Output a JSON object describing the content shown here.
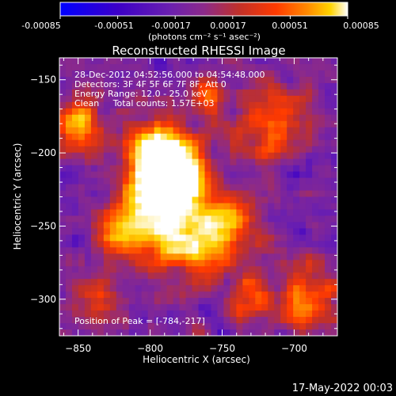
{
  "colorbar": {
    "ticks": [
      "-0.00085",
      "-0.00051",
      "-0.00017",
      "0.00017",
      "0.00051",
      "0.00085"
    ],
    "unit_label": "(photons cm⁻² s⁻¹ asec⁻²)",
    "colors": [
      "#0000ff",
      "#3c00c8",
      "#6a1fb0",
      "#8c2a8a",
      "#c0302a",
      "#ff3a00",
      "#ff8a00",
      "#ffd400",
      "#ffffff"
    ]
  },
  "chart_data": {
    "type": "heatmap",
    "title": "Reconstructed RHESSI Image",
    "xlabel": "Heliocentric X (arcsec)",
    "ylabel": "Heliocentric Y (arcsec)",
    "xlim": [
      -863,
      -670
    ],
    "ylim": [
      -325,
      -135
    ],
    "xticks": [
      -850,
      -800,
      -750,
      -700
    ],
    "yticks": [
      -150,
      -200,
      -250,
      -300
    ],
    "xtick_labels": [
      "−850",
      "−800",
      "−750",
      "−700"
    ],
    "ytick_labels": [
      "−150",
      "−200",
      "−250",
      "−300"
    ],
    "annotations": [
      "28-Dec-2012 04:52:56.000 to 04:54:48.000",
      "Detectors: 3F 4F 5F 6F 7F 8F, Att 0",
      "Energy Range: 12.0 - 25.0 keV",
      "Clean     Total counts: 1.57E+03"
    ],
    "peak_label": "Position of Peak = [-784,-217]",
    "peak": [
      -784,
      -217
    ],
    "color_range": [
      -0.00085,
      0.00085
    ]
  },
  "footer": {
    "timestamp": "17-May-2022 00:03"
  }
}
